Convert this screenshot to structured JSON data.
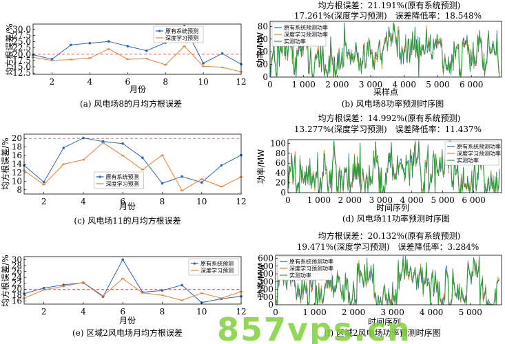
{
  "colors": {
    "orig": "#2b62c4",
    "dl": "#f07f2f",
    "actual": "#2e9e3a",
    "threshold": "#e05050",
    "watermark": "#7fd13b"
  },
  "watermark_text": "857vps.cn",
  "chart_data": [
    {
      "id": "a",
      "type": "line",
      "xlabel": "月份",
      "ylabel": "均方根误差/%",
      "xlim": [
        1,
        12
      ],
      "ylim": [
        12,
        32
      ],
      "xticks": [
        2,
        4,
        6,
        8,
        10,
        12
      ],
      "yticks": [
        12.5,
        15.0,
        17.5,
        20.0,
        22.5,
        25.0,
        27.5,
        30.0
      ],
      "ytick_labels": [
        "12.5",
        "15.0",
        "17.5",
        "20.0",
        "22.5",
        "25.0",
        "27.5",
        "30.0"
      ],
      "threshold": 20,
      "grid": false,
      "legend": "top-center",
      "x": [
        1,
        2,
        3,
        4,
        5,
        6,
        7,
        8,
        9,
        10,
        11,
        12
      ],
      "series": [
        {
          "name": "原有系统预测",
          "key": "orig",
          "values": [
            19.8,
            18.0,
            23.7,
            24.4,
            25.1,
            23.2,
            21.4,
            24.6,
            31.2,
            16.4,
            20.3,
            16.0
          ]
        },
        {
          "name": "深度学习预测",
          "key": "dl",
          "values": [
            18.8,
            17.5,
            17.9,
            18.5,
            22.1,
            18.0,
            18.2,
            15.8,
            23.2,
            15.2,
            14.8,
            13.0
          ]
        }
      ],
      "caption": "(a) 风电场8的月均方根误差"
    },
    {
      "id": "b",
      "type": "line",
      "xlabel": "采样点",
      "ylabel": "功率/MW",
      "header": [
        "均方根误差：21.191%(原有系统预测)",
        "17.261%(深度学习预测)　误差降低率：18.548%"
      ],
      "xlim": [
        0,
        6900
      ],
      "ylim": [
        0,
        88
      ],
      "xticks": [
        0,
        1000,
        2000,
        3000,
        4000,
        5000,
        6000
      ],
      "xtick_labels": [
        "0",
        "1 000",
        "2 000",
        "3 000",
        "4 000",
        "5 000",
        "6 000"
      ],
      "yticks": [
        0,
        20,
        40,
        60,
        80
      ],
      "ytick_labels": [
        "0",
        "20",
        "40",
        "60",
        "80"
      ],
      "legend": "top-left",
      "signal": {
        "max": 85,
        "seed": 11,
        "points": 300
      },
      "series": [
        {
          "name": "原有系统预测功率",
          "key": "orig"
        },
        {
          "name": "深度学习预测功率",
          "key": "dl"
        },
        {
          "name": "实测功率",
          "key": "actual"
        }
      ],
      "caption": "(b) 风电场8功率预测时序图"
    },
    {
      "id": "c",
      "type": "line",
      "xlabel": "月份",
      "ylabel": "均方根误差/%",
      "xlim": [
        1,
        12
      ],
      "ylim": [
        7,
        21
      ],
      "xticks": [
        2,
        4,
        6,
        8,
        10,
        12
      ],
      "yticks": [
        8,
        10,
        12,
        14,
        16,
        18,
        20
      ],
      "ytick_labels": [
        "8",
        "10",
        "12",
        "14",
        "16",
        "18",
        "20"
      ],
      "threshold": 20,
      "grid": false,
      "legend": "bottom-center",
      "x": [
        1,
        2,
        3,
        4,
        5,
        6,
        7,
        8,
        9,
        10,
        11,
        12
      ],
      "series": [
        {
          "name": "原有系统预测",
          "key": "orig",
          "values": [
            13.7,
            9.8,
            17.8,
            20.1,
            19.3,
            18.8,
            15.5,
            9.5,
            11.1,
            9.7,
            13.7,
            16.1
          ]
        },
        {
          "name": "深度学习预测",
          "key": "dl",
          "values": [
            12.5,
            9.2,
            14.0,
            15.0,
            19.0,
            16.0,
            12.7,
            16.1,
            7.8,
            10.5,
            8.7,
            11.0
          ]
        }
      ],
      "caption": "(c) 风电场11的月均方根误差"
    },
    {
      "id": "d",
      "type": "line",
      "xlabel": "时间序列",
      "ylabel": "功率/MW",
      "header": [
        "均方根误差：14.992%(原有系统预测)",
        "13.277%(深度学习预测)　误差降低率：11.437%"
      ],
      "xlim": [
        0,
        6900
      ],
      "ylim": [
        0,
        108
      ],
      "xticks": [
        0,
        1000,
        2000,
        3000,
        4000,
        5000,
        6000
      ],
      "xtick_labels": [
        "0",
        "1 000",
        "2 000",
        "3 000",
        "4 000",
        "5 000",
        "6 000"
      ],
      "yticks": [
        0,
        20,
        40,
        60,
        80,
        100
      ],
      "ytick_labels": [
        "0",
        "20",
        "40",
        "60",
        "80",
        "100"
      ],
      "legend": "top-right",
      "signal": {
        "max": 104,
        "seed": 23,
        "points": 300
      },
      "series": [
        {
          "name": "原有系统预测功率",
          "key": "orig"
        },
        {
          "name": "深度学习预测功率",
          "key": "dl"
        },
        {
          "name": "实测功率",
          "key": "actual"
        }
      ],
      "caption": "(d) 风电场11功率预测时序图"
    },
    {
      "id": "e",
      "type": "line",
      "xlabel": "月份",
      "ylabel": "均方根误差/%",
      "xlim": [
        1,
        12
      ],
      "ylim": [
        15,
        31
      ],
      "xticks": [
        2,
        4,
        6,
        8,
        10,
        12
      ],
      "yticks": [
        16,
        18,
        20,
        22,
        24,
        26,
        28,
        30
      ],
      "ytick_labels": [
        "16",
        "18",
        "20",
        "22",
        "24",
        "26",
        "28",
        "30"
      ],
      "threshold": 20,
      "grid": false,
      "legend": "top-right",
      "x": [
        1,
        2,
        3,
        4,
        5,
        6,
        7,
        8,
        9,
        10,
        11,
        12
      ],
      "series": [
        {
          "name": "原有系统预测",
          "key": "orig",
          "values": [
            18.5,
            20.4,
            21.5,
            22.2,
            17.5,
            30.0,
            19.0,
            19.6,
            21.4,
            15.5,
            16.8,
            17.6
          ]
        },
        {
          "name": "深度学习预测",
          "key": "dl",
          "values": [
            17.0,
            19.8,
            21.0,
            22.3,
            17.8,
            23.6,
            18.8,
            18.0,
            16.3,
            18.7,
            17.0,
            19.2
          ]
        }
      ],
      "caption": "(e) 区域2风电场月均方根误差"
    },
    {
      "id": "f",
      "type": "line",
      "xlabel": "时间序列",
      "ylabel": "功率/MW",
      "header": [
        "均方根误差：20.132%(原有系统预测)",
        "19.471%(深度学习预测)　误差降低率：3.284%"
      ],
      "xlim": [
        0,
        5800
      ],
      "ylim": [
        0,
        640
      ],
      "xticks": [
        0,
        1000,
        2000,
        3000,
        4000,
        5000
      ],
      "xtick_labels": [
        "0",
        "1 000",
        "2 000",
        "3 000",
        "4 000",
        "5 000"
      ],
      "yticks": [
        0,
        100,
        200,
        300,
        400,
        500,
        600
      ],
      "ytick_labels": [
        "0",
        "100",
        "200",
        "300",
        "400",
        "500",
        "600"
      ],
      "legend": "top-left",
      "signal": {
        "max": 600,
        "seed": 37,
        "points": 280
      },
      "series": [
        {
          "name": "原有系统预测功率",
          "key": "orig"
        },
        {
          "name": "深度学习预测功率",
          "key": "dl"
        },
        {
          "name": "实测功率",
          "key": "actual"
        }
      ],
      "caption": "(f) 区域2风电场功率预测时序图"
    }
  ]
}
